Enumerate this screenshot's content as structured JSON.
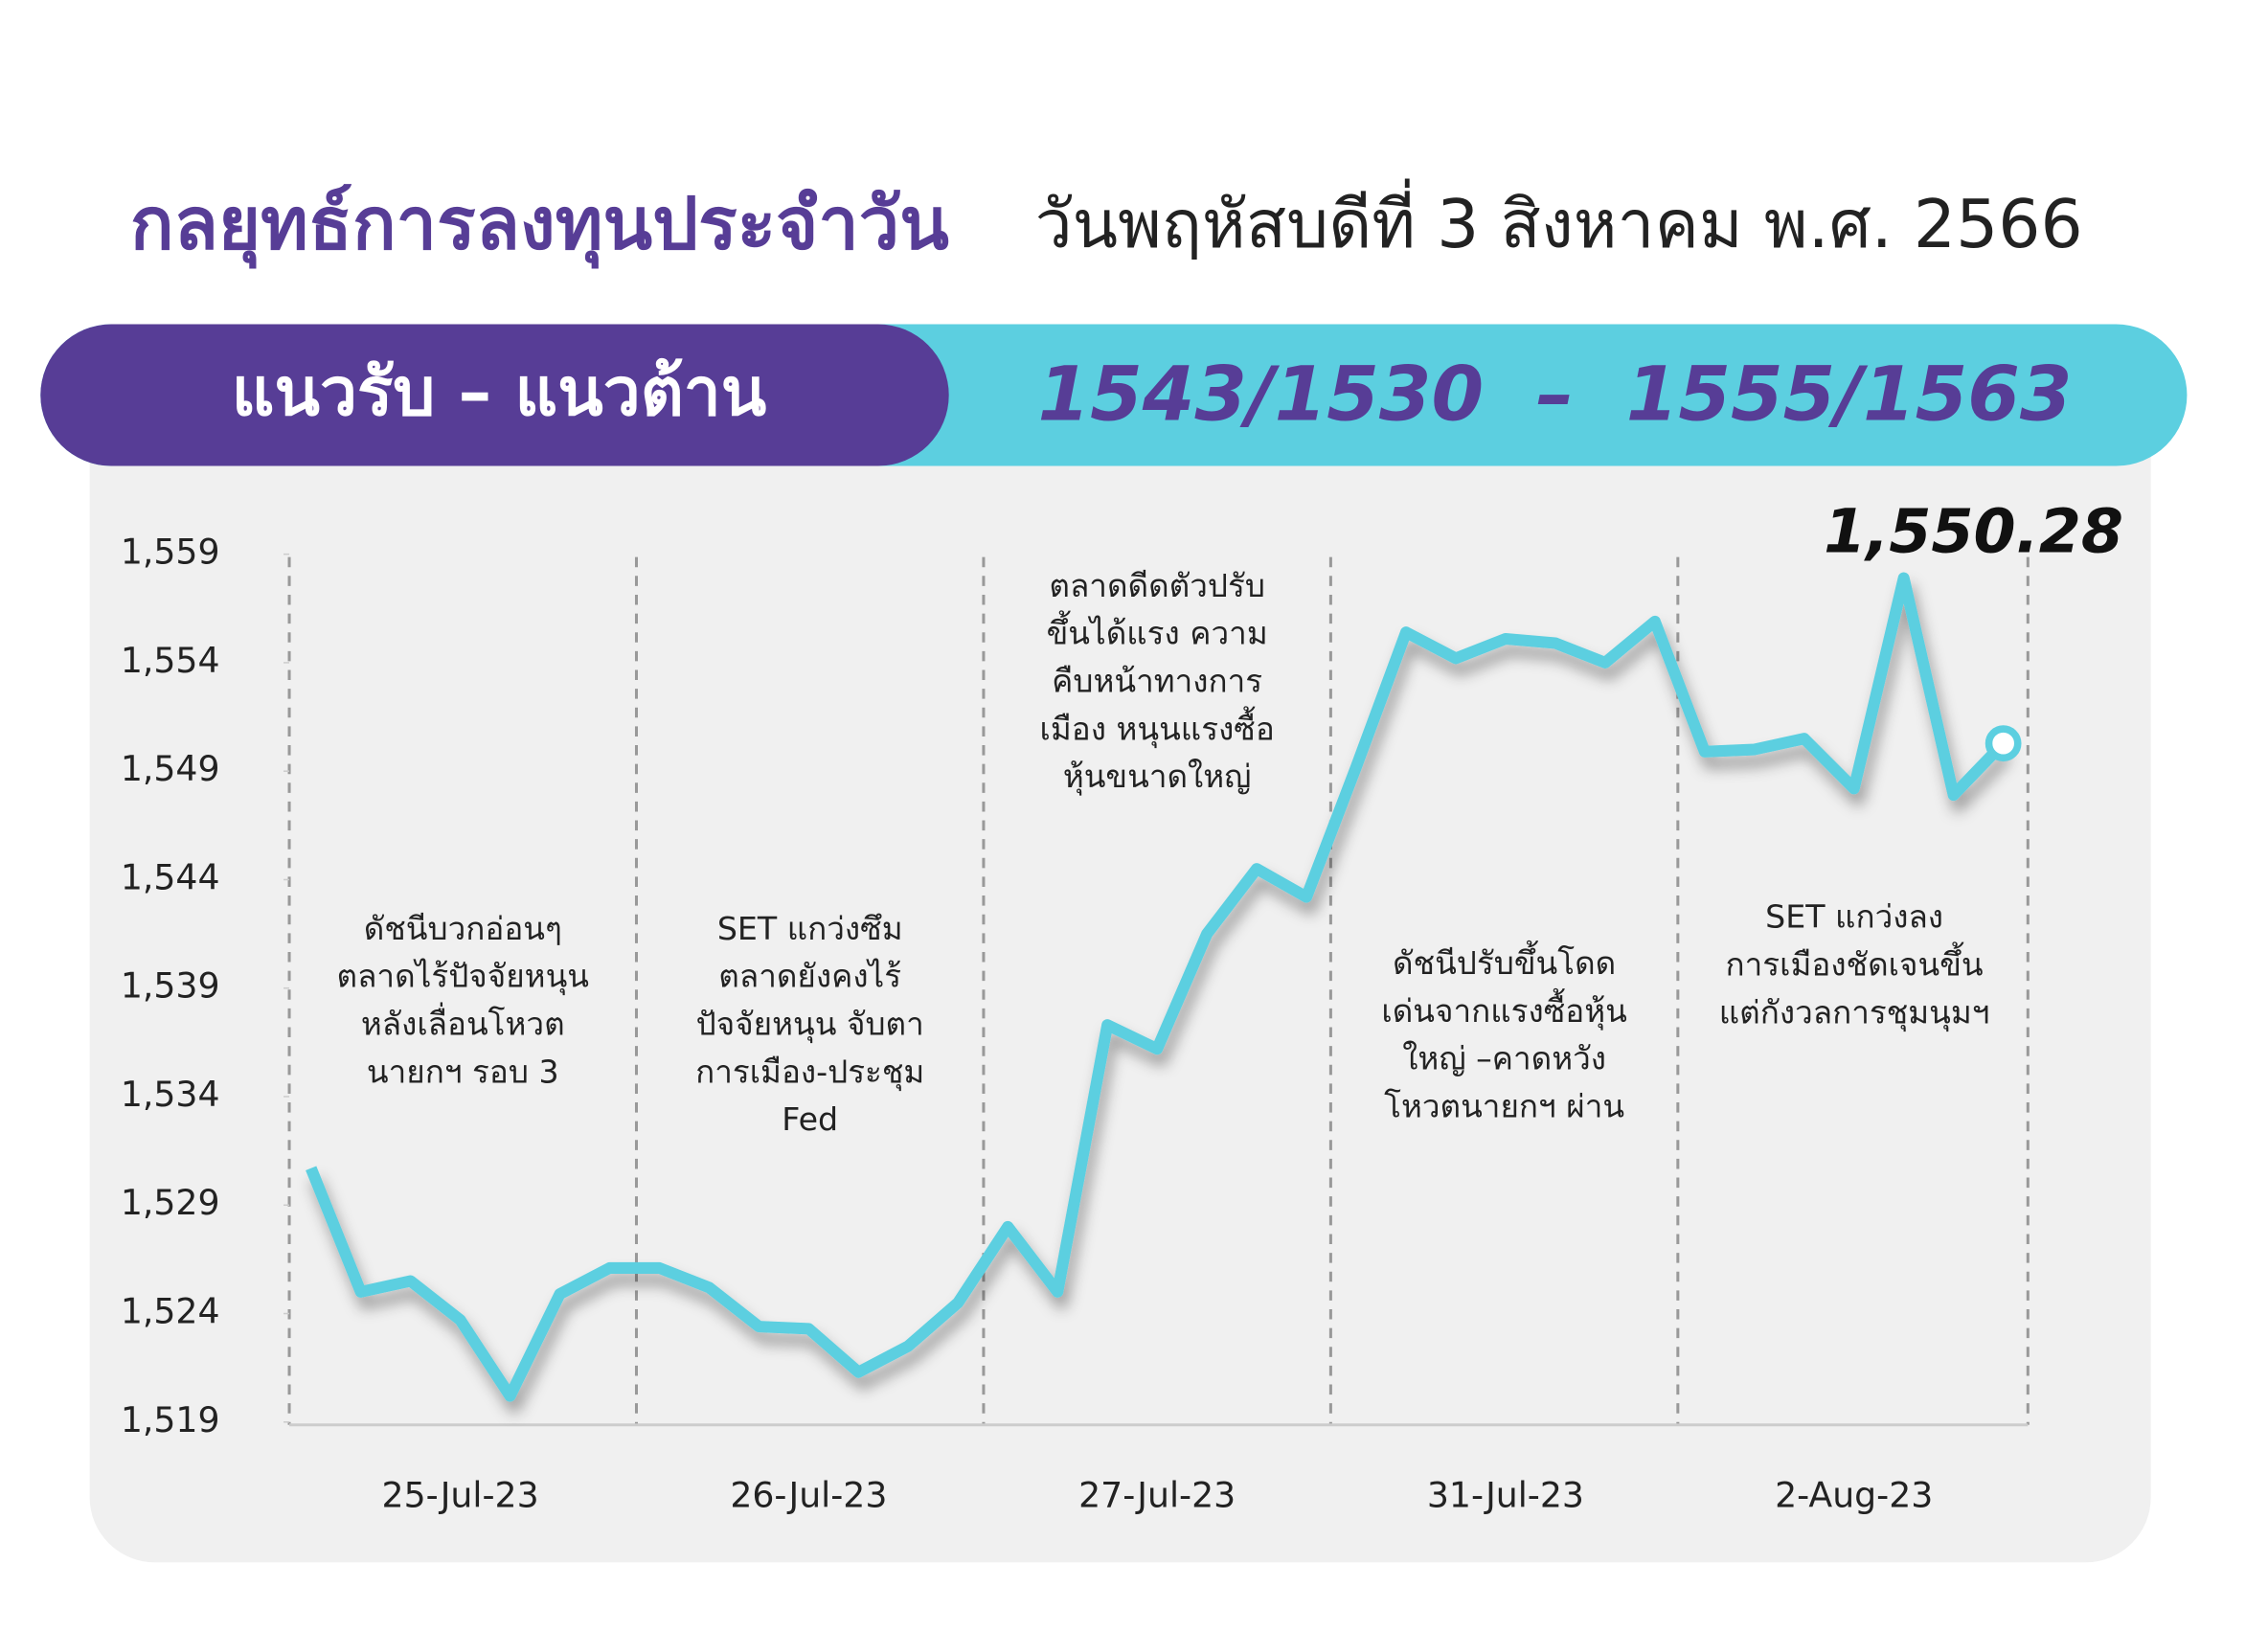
{
  "chart_data": {
    "type": "line",
    "title": "กลยุทธ์การลงทุนประจำวัน",
    "subtitle": "วันพฤหัสบดีที่ 3 สิงหาคม พ.ศ. 2566",
    "band_label": "แนวรับ – แนวต้าน",
    "band_value": "1543/1530  –  1555/1563",
    "categories": [
      null,
      null,
      null,
      "25-Jul-23",
      null,
      null,
      null,
      null,
      null,
      null,
      "26-Jul-23",
      null,
      null,
      null,
      null,
      null,
      null,
      "27-Jul-23",
      null,
      null,
      null,
      null,
      null,
      null,
      "31-Jul-23",
      null,
      null,
      null,
      null,
      null,
      null,
      "2-Aug-23",
      null,
      null,
      null
    ],
    "series": [
      {
        "color": "#5ccfe0",
        "values": [
          1530.7,
          1525,
          1525.5,
          1523.7,
          1520.2,
          1524.9,
          1526.1,
          1526.1,
          1525.2,
          1523.4,
          1523.3,
          1521.3,
          1522.5,
          1524.5,
          1528,
          1525,
          1537.3,
          1536.2,
          1541.5,
          1544.5,
          1543.2,
          1549.2,
          1555.4,
          1554.2,
          1555.1,
          1554.9,
          1554,
          1555.9,
          1549.9,
          1550,
          1550.5,
          1548.2,
          1557.9,
          1547.9,
          1550.28
        ],
        "value_labels": [
          null,
          null,
          null,
          null,
          null,
          null,
          null,
          null,
          null,
          null,
          null,
          null,
          null,
          null,
          null,
          null,
          null,
          null,
          null,
          null,
          null,
          null,
          null,
          null,
          null,
          null,
          null,
          null,
          null,
          null,
          null,
          null,
          null,
          null,
          "1,550.28"
        ]
      }
    ],
    "ylim": [
      1519,
      1559
    ],
    "yticks": [
      {
        "value": 1519,
        "label": "1,519"
      },
      {
        "value": 1524,
        "label": "1,524"
      },
      {
        "value": 1529,
        "label": "1,529"
      },
      {
        "value": 1534,
        "label": "1,534"
      },
      {
        "value": 1539,
        "label": "1,539"
      },
      {
        "value": 1544,
        "label": "1,544"
      },
      {
        "value": 1549,
        "label": "1,549"
      },
      {
        "value": 1554,
        "label": "1,554"
      },
      {
        "value": 1559,
        "label": "1,559"
      }
    ],
    "annotations": [
      [
        "ดัชนีบวกอ่อนๆ",
        "ตลาดไร้ปัจจัยหนุน",
        "หลังเลื่อนโหวต",
        "นายกฯ รอบ 3"
      ],
      [
        "SET แกว่งซึม",
        "ตลาดยังคงไร้",
        "ปัจจัยหนุน จับตา",
        "การเมือง-ประชุม",
        "Fed"
      ],
      [
        "ตลาดดีดตัวปรับ",
        "ขึ้นได้แรง ความ",
        "คืบหน้าทางการ",
        "เมือง หนุนแรงซื้อ",
        "หุ้นขนาดใหญ่"
      ],
      [
        "ดัชนีปรับขึ้นโดด",
        "เด่นจากแรงซื้อหุ้น",
        "ใหญ่ –คาดหวัง",
        "โหวตนายกฯ ผ่าน"
      ],
      [
        "SET แกว่งลง",
        "การเมืองชัดเจนขึ้น",
        "แต่กังวลการชุมนุมฯ"
      ]
    ]
  }
}
